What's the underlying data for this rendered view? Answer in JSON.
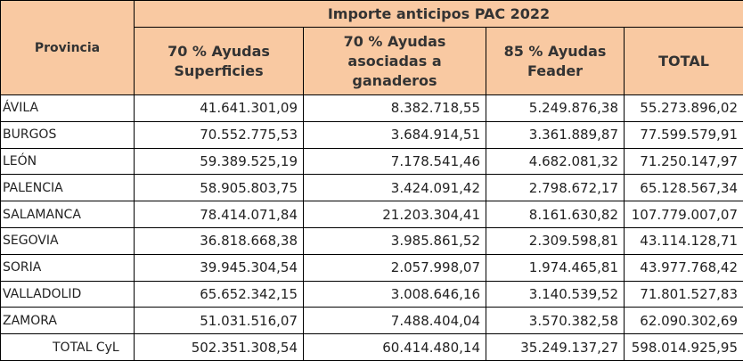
{
  "table": {
    "title": "Importe anticipos PAC 2022",
    "columns": [
      "Provincia",
      "70 % Ayudas Superficies",
      "70 % Ayudas asociadas a ganaderos",
      "85 % Ayudas Feader",
      "TOTAL"
    ],
    "rows": [
      [
        "ÁVILA",
        "41.641.301,09",
        "8.382.718,55",
        "5.249.876,38",
        "55.273.896,02"
      ],
      [
        "BURGOS",
        "70.552.775,53",
        "3.684.914,51",
        "3.361.889,87",
        "77.599.579,91"
      ],
      [
        "LEÓN",
        "59.389.525,19",
        "7.178.541,46",
        "4.682.081,32",
        "71.250.147,97"
      ],
      [
        "PALENCIA",
        "58.905.803,75",
        "3.424.091,42",
        "2.798.672,17",
        "65.128.567,34"
      ],
      [
        "SALAMANCA",
        "78.414.071,84",
        "21.203.304,41",
        "8.161.630,82",
        "107.779.007,07"
      ],
      [
        "SEGOVIA",
        "36.818.668,38",
        "3.985.861,52",
        "2.309.598,81",
        "43.114.128,71"
      ],
      [
        "SORIA",
        "39.945.304,54",
        "2.057.998,07",
        "1.974.465,81",
        "43.977.768,42"
      ],
      [
        "VALLADOLID",
        "65.652.342,15",
        "3.008.646,16",
        "3.140.539,52",
        "71.801.527,83"
      ],
      [
        "ZAMORA",
        "51.031.516,07",
        "7.488.404,04",
        "3.570.382,58",
        "62.090.302,69"
      ]
    ],
    "total": [
      "TOTAL CyL",
      "502.351.308,54",
      "60.414.480,14",
      "35.249.137,27",
      "598.014.925,95"
    ]
  }
}
